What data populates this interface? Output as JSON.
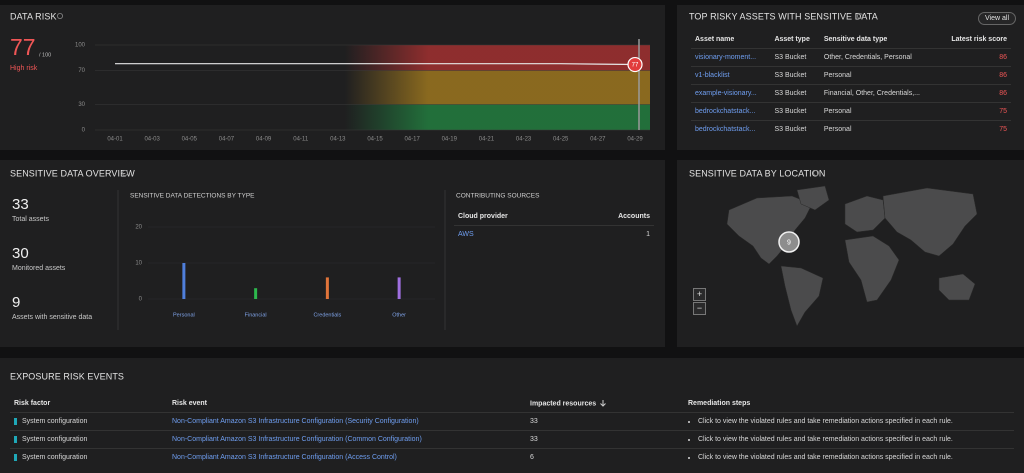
{
  "data_risk": {
    "title": "DATA RISK",
    "score": 77,
    "score_max": "/ 100",
    "level": "High risk",
    "chart": {
      "type": "line",
      "categories": [
        "04-01",
        "04-03",
        "04-05",
        "04-07",
        "04-09",
        "04-11",
        "04-13",
        "04-15",
        "04-17",
        "04-19",
        "04-21",
        "04-23",
        "04-25",
        "04-27",
        "04-29"
      ],
      "values": [
        78,
        78,
        78,
        78,
        78,
        78,
        78,
        78,
        78,
        78,
        78,
        78,
        78,
        77.5,
        77
      ],
      "color": "#e6e6e6",
      "ylim": [
        0,
        100
      ],
      "yticks": [
        0,
        30,
        70,
        100
      ]
    }
  },
  "top_risky_assets": {
    "title": "TOP RISKY ASSETS WITH SENSITIVE DATA",
    "button": "View all",
    "columns": [
      "Asset name",
      "Asset type",
      "Sensitive data type",
      "Latest risk score"
    ],
    "rows": [
      [
        "visionary-moment...",
        "S3 Bucket",
        "Other, Credentials, Personal",
        86
      ],
      [
        "v1-blacklist",
        "S3 Bucket",
        "Personal",
        86
      ],
      [
        "example-visionary...",
        "S3 Bucket",
        "Financial, Other, Credentials,...",
        86
      ],
      [
        "bedrockchatstack...",
        "S3 Bucket",
        "Personal",
        75
      ],
      [
        "bedrockchatstack...",
        "S3 Bucket",
        "Personal",
        75
      ]
    ]
  },
  "sensitive_data_overview": {
    "title": "SENSITIVE DATA OVERVIEW",
    "stats": [
      {
        "value": 33,
        "label": "Total assets"
      },
      {
        "value": 30,
        "label": "Monitored assets"
      },
      {
        "value": 9,
        "label": "Assets with sensitive data"
      }
    ],
    "detections_chart": {
      "type": "bar",
      "title": "SENSITIVE DATA DETECTIONS BY TYPE",
      "categories": [
        "Personal",
        "Financial",
        "Credentials",
        "Other"
      ],
      "values": [
        10,
        3,
        6,
        6
      ],
      "colors": [
        "#4f7fdc",
        "#2db84d",
        "#e0743a",
        "#9f6fe0"
      ],
      "ylim": [
        0,
        20
      ],
      "yticks": [
        0,
        10,
        20
      ]
    },
    "contributing_sources": {
      "title": "CONTRIBUTING SOURCES",
      "columns": [
        "Cloud provider",
        "Accounts"
      ],
      "rows": [
        [
          "AWS",
          1
        ]
      ]
    }
  },
  "sensitive_data_by_location": {
    "title": "SENSITIVE DATA BY LOCATION",
    "clusters": [
      {
        "count": 9
      }
    ],
    "zoom_in": "+",
    "zoom_out": "−"
  },
  "exposure_risk_events": {
    "title": "EXPOSURE RISK EVENTS",
    "columns": [
      "Risk factor",
      "Risk event",
      "Impacted resources",
      "Remediation steps"
    ],
    "rows": [
      [
        "System configuration",
        "Non-Compliant Amazon S3 Infrastructure Configuration (Security Configuration)",
        33,
        "Click to view the violated rules and take remediation actions specified in each rule."
      ],
      [
        "System configuration",
        "Non-Compliant Amazon S3 Infrastructure Configuration (Common Configuration)",
        33,
        "Click to view the violated rules and take remediation actions specified in each rule."
      ],
      [
        "System configuration",
        "Non-Compliant Amazon S3 Infrastructure Configuration (Access Control)",
        6,
        "Click to view the violated rules and take remediation actions specified in each rule."
      ]
    ]
  }
}
